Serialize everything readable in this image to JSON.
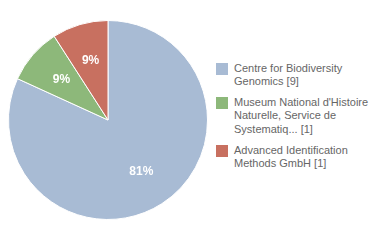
{
  "chart_data": {
    "type": "pie",
    "categories": [
      "Centre for Biodiversity\nGenomics [9]",
      "Museum National d'Histoire\nNaturelle, Service de\nSystematiq... [1]",
      "Advanced Identification\nMethods GmbH [1]"
    ],
    "values": [
      81,
      9,
      9
    ],
    "value_labels": [
      "81%",
      "9%",
      "9%"
    ],
    "colors": [
      "#a8bbd4",
      "#8db87a",
      "#c87060"
    ],
    "data_labels": true,
    "legend": "right"
  }
}
